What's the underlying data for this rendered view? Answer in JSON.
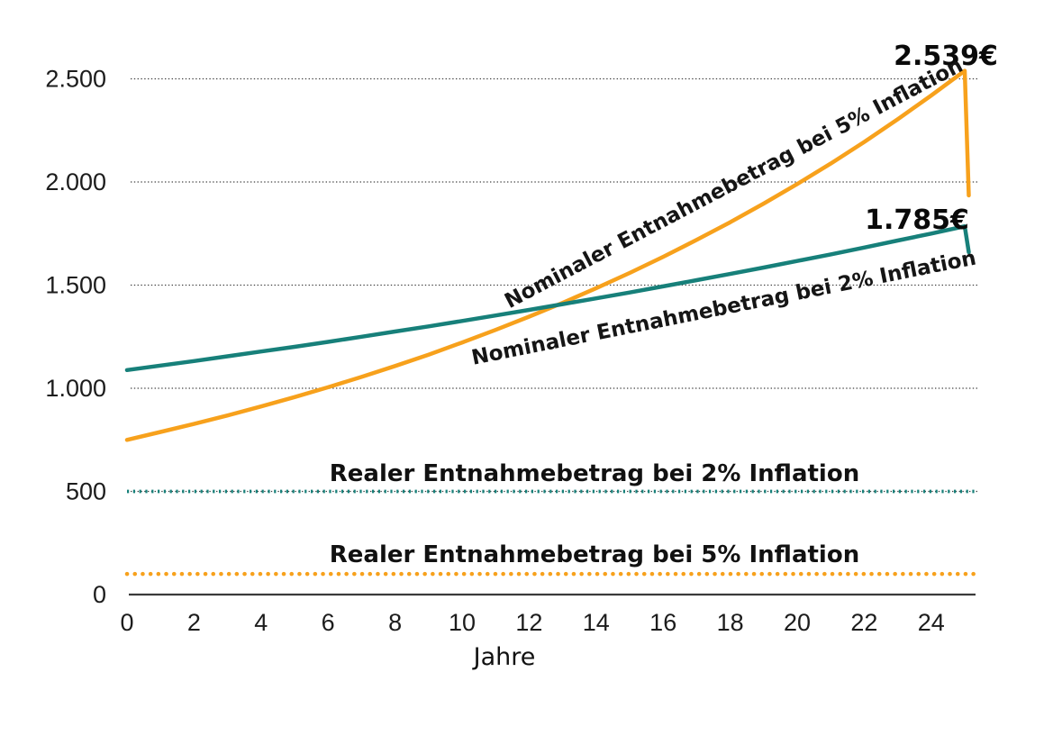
{
  "chart_data": {
    "type": "line",
    "title": "",
    "xlabel": "Jahre",
    "ylabel": "",
    "x_unit": "Jahre",
    "x_ticks": [
      0,
      2,
      4,
      6,
      8,
      10,
      12,
      14,
      16,
      18,
      20,
      22,
      24
    ],
    "x_max_years": 25,
    "ylim": [
      0,
      2700
    ],
    "y_ticks": [
      {
        "value": 0,
        "label": "0"
      },
      {
        "value": 500,
        "label": "500"
      },
      {
        "value": 1000,
        "label": "1.000"
      },
      {
        "value": 1500,
        "label": "1.500"
      },
      {
        "value": 2000,
        "label": "2.000"
      },
      {
        "value": 2500,
        "label": "2.500"
      }
    ],
    "grid": "horizontal-dotted",
    "legend_position": "inline-labels",
    "series": [
      {
        "name": "Nominaler Entnahmebetrag bei 5% Inflation",
        "style": "solid",
        "color": "#F7A11C",
        "inflation_rate_percent": 5,
        "start_value": 750,
        "values_by_year": [
          750,
          788,
          827,
          868,
          912,
          957,
          1005,
          1055,
          1108,
          1163,
          1222,
          1283,
          1347,
          1414,
          1485,
          1559,
          1637,
          1719,
          1805,
          1895,
          1990,
          2089,
          2194,
          2304,
          2419,
          2539
        ],
        "peak_value": 2539,
        "peak_value_label": "2.539€",
        "end_drop": {
          "year": 25.12,
          "value": 1935
        }
      },
      {
        "name": "Nominaler Entnahmebetrag bei 2% Inflation",
        "style": "solid",
        "color": "#17807A",
        "inflation_rate_percent": 2,
        "start_value": 1088,
        "values_by_year": [
          1088,
          1110,
          1132,
          1155,
          1178,
          1201,
          1225,
          1250,
          1275,
          1300,
          1326,
          1353,
          1380,
          1408,
          1436,
          1464,
          1494,
          1524,
          1554,
          1585,
          1617,
          1649,
          1682,
          1716,
          1750,
          1785
        ],
        "peak_value": 1785,
        "peak_value_label": "1.785€",
        "end_drop": {
          "year": 25.12,
          "value": 1660
        }
      },
      {
        "name": "Realer Entnahmebetrag bei 2% Inflation",
        "style": "dotted",
        "color": "#17807A",
        "inflation_rate_percent": 2,
        "constant_value": 500,
        "x_range_years": [
          0,
          25.35
        ]
      },
      {
        "name": "Realer Entnahmebetrag bei 5% Inflation",
        "style": "dotted",
        "color": "#F7A11C",
        "inflation_rate_percent": 5,
        "constant_value": 100,
        "x_range_years": [
          0,
          25.3
        ]
      }
    ],
    "annotations": {
      "peak_nominal_5_label": "2.539€",
      "peak_nominal_2_label": "1.785€",
      "curve_label_nominal_5": "Nominaler Entnahmebetrag bei 5% Inflation",
      "curve_label_nominal_2": "Nominaler Entnahmebetrag bei 2% Inflation",
      "flat_label_real_2": "Realer Entnahmebetrag bei 2% Inflation",
      "flat_label_real_5": "Realer Entnahmebetrag bei 5% Inflation"
    }
  },
  "colors": {
    "teal": "#17807A",
    "orange": "#F7A11C",
    "gridline": "#2f2f2f",
    "axis": "#3a3a3a",
    "text": "#111111",
    "background": "#ffffff"
  }
}
